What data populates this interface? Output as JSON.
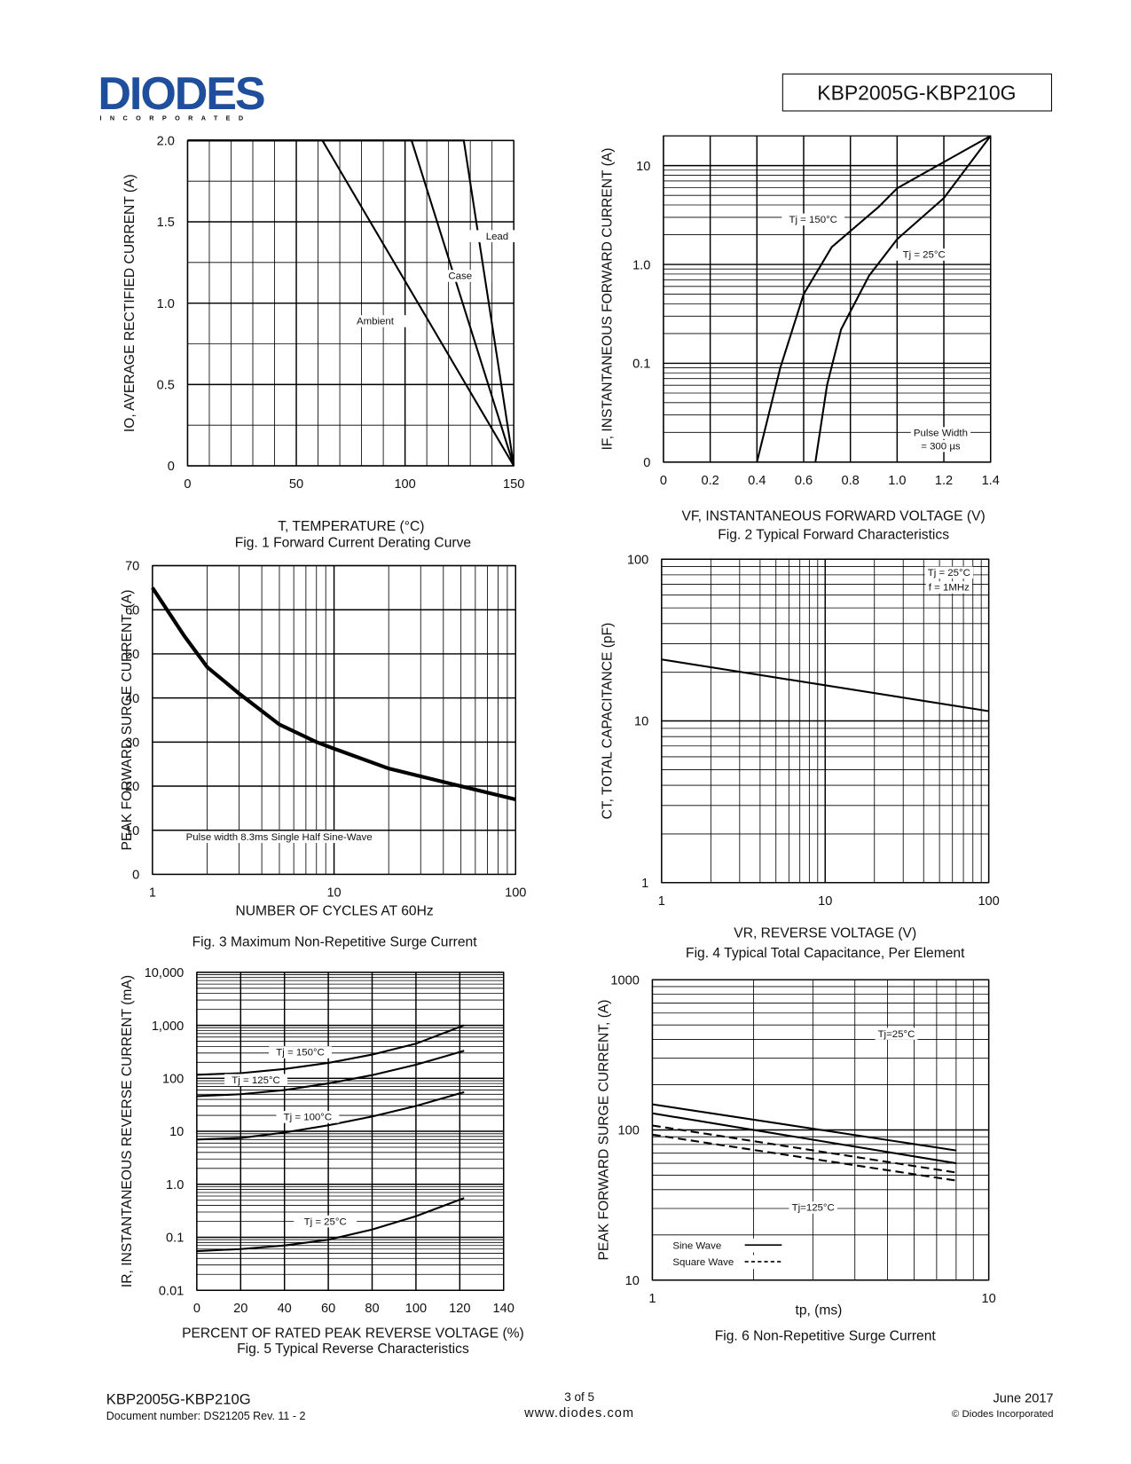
{
  "header": {
    "logo": "DIODES",
    "logo_sub": "INCORPORATED",
    "part": "KBP2005G-KBP210G"
  },
  "footer": {
    "part": "KBP2005G-KBP210G",
    "doc": "Document number: DS21205 Rev. 11 - 2",
    "page": "3 of 5",
    "web": "www.diodes.com",
    "date": "June 2017",
    "copyright": "© Diodes Incorporated"
  },
  "chart_data": [
    {
      "type": "line",
      "title": "Fig. 1  Forward Current Derating Curve",
      "xlabel": "T, TEMPERATURE (°C)",
      "ylabel": "IO, AVERAGE RECTIFIED CURRENT (A)",
      "xlim": [
        0,
        150
      ],
      "xticks": [
        0,
        50,
        100,
        150
      ],
      "xgrid_step": 10,
      "ylim": [
        0,
        2
      ],
      "yticks": [
        0,
        0.5,
        {
          "value": 1,
          "label": "1.0"
        },
        1.5,
        {
          "value": 2,
          "label": "2.0"
        }
      ],
      "ygrid_step": 0.25,
      "series": [
        {
          "name": "Ambient",
          "color": "#000",
          "x": [
            0,
            62,
            150
          ],
          "values": [
            2,
            2,
            0
          ]
        },
        {
          "name": "Case",
          "color": "#000",
          "x": [
            0,
            103,
            150
          ],
          "values": [
            2,
            2,
            0
          ]
        },
        {
          "name": "Lead",
          "color": "#000",
          "x": [
            0,
            127,
            150
          ],
          "values": [
            2,
            2,
            0
          ]
        }
      ]
    },
    {
      "type": "line",
      "title": "Fig. 2  Typical Forward Characteristics",
      "xlabel": "VF, INSTANTANEOUS FORWARD VOLTAGE (V)",
      "ylabel": "IF, INSTANTANEOUS FORWARD CURRENT (A)",
      "xlim": [
        0,
        1.4
      ],
      "xticks": [
        0,
        0.2,
        0.4,
        0.6,
        0.8,
        {
          "value": 1,
          "label": "1.0"
        },
        1.2,
        1.4
      ],
      "xgrid_step": 0.2,
      "ylim": [
        0.01,
        20
      ],
      "yscale": "log",
      "yticks": [
        {
          "value": 0.01,
          "label": "0"
        },
        0.1,
        {
          "value": 1,
          "label": "1.0"
        },
        10
      ],
      "annotations": [
        "Pulse Width",
        "= 300 µs"
      ],
      "series": [
        {
          "name": "Tj = 150°C",
          "color": "#000",
          "x": [
            0.4,
            0.5,
            0.6,
            0.72,
            0.92,
            1.0,
            1.4
          ],
          "values": [
            0.01,
            0.09,
            0.5,
            1.5,
            3.8,
            5.9,
            20
          ]
        },
        {
          "name": "Tj = 25°C",
          "color": "#000",
          "x": [
            0.65,
            0.7,
            0.76,
            0.88,
            1.0,
            1.2,
            1.4
          ],
          "values": [
            0.01,
            0.06,
            0.22,
            0.77,
            1.8,
            4.7,
            20
          ]
        }
      ]
    },
    {
      "type": "line",
      "title": "Fig. 3 Maximum Non-Repetitive Surge Current",
      "xlabel": "NUMBER OF CYCLES AT 60Hz",
      "ylabel": "PEAK FORWARD SURGE CURRENT, (A)",
      "xlim": [
        1,
        100
      ],
      "xscale": "log",
      "xticks": [
        1,
        10,
        100
      ],
      "ylim": [
        0,
        70
      ],
      "yticks": [
        0,
        10,
        20,
        30,
        40,
        50,
        60,
        70
      ],
      "annotations": [
        "Pulse width 8.3ms Single Half Sine-Wave"
      ],
      "series": [
        {
          "color": "#000",
          "x": [
            1,
            1.5,
            2,
            3,
            5,
            8,
            10,
            20,
            50,
            100
          ],
          "values": [
            65,
            54,
            47,
            41,
            34,
            30,
            28.5,
            24,
            20,
            17
          ]
        }
      ]
    },
    {
      "type": "line",
      "title": "Fig. 4  Typical Total Capacitance, Per Element",
      "xlabel": "VR, REVERSE VOLTAGE (V)",
      "ylabel": "CT, TOTAL CAPACITANCE (pF)",
      "xlim": [
        1,
        100
      ],
      "xscale": "log",
      "xticks": [
        1,
        10,
        100
      ],
      "ylim": [
        1,
        100
      ],
      "yscale": "log",
      "yticks": [
        1,
        10,
        100
      ],
      "annotations": [
        "Tj = 25°C",
        "f = 1MHz"
      ],
      "series": [
        {
          "color": "#000",
          "x": [
            1,
            100
          ],
          "values": [
            24,
            11.5
          ]
        }
      ]
    },
    {
      "type": "line",
      "title": "Fig. 5  Typical Reverse Characteristics",
      "xlabel": "PERCENT OF RATED PEAK REVERSE VOLTAGE (%)",
      "ylabel": "IR, INSTANTANEOUS REVERSE CURRENT (mA)",
      "xlim": [
        0,
        140
      ],
      "xticks": [
        0,
        20,
        40,
        60,
        80,
        100,
        120,
        140
      ],
      "ylim": [
        0.01,
        10000
      ],
      "yscale": "log",
      "yticks": [
        0.01,
        0.1,
        {
          "value": 1,
          "label": "1.0"
        },
        10,
        100,
        {
          "value": 1000,
          "label": "1,000"
        },
        {
          "value": 10000,
          "label": "10,000"
        }
      ],
      "series": [
        {
          "name": "Tj = 150°C",
          "color": "#000",
          "x": [
            0,
            20,
            40,
            60,
            80,
            100,
            122
          ],
          "values": [
            117,
            125,
            150,
            195,
            280,
            450,
            1000
          ]
        },
        {
          "name": "Tj = 125°C",
          "color": "#000",
          "x": [
            0,
            20,
            40,
            60,
            80,
            100,
            122
          ],
          "values": [
            46,
            50,
            60,
            80,
            115,
            180,
            330
          ]
        },
        {
          "name": "Tj = 100°C",
          "color": "#000",
          "x": [
            0,
            20,
            40,
            60,
            80,
            100,
            122
          ],
          "values": [
            7,
            7.5,
            9.5,
            13,
            19,
            30,
            55
          ]
        },
        {
          "name": "Tj = 25°C",
          "color": "#000",
          "x": [
            0,
            20,
            40,
            60,
            80,
            100,
            122
          ],
          "values": [
            0.055,
            0.06,
            0.07,
            0.09,
            0.14,
            0.25,
            0.55
          ]
        }
      ]
    },
    {
      "type": "line",
      "title": "Fig. 6 Non-Repetitive Surge Current",
      "xlabel": "tp, (ms)",
      "ylabel": "PEAK FORWARD SURGE CURRENT, (A)",
      "xlim": [
        1,
        10
      ],
      "xscale": "log",
      "xticks": [
        1,
        10
      ],
      "ylim": [
        10,
        1000
      ],
      "yscale": "log",
      "yticks": [
        10,
        100,
        1000
      ],
      "annotations": [
        "Tj=25°C",
        "Tj=125°C"
      ],
      "legend": [
        {
          "label": "Sine Wave",
          "dash": false
        },
        {
          "label": "Square Wave",
          "dash": true
        }
      ],
      "series": [
        {
          "color": "#000",
          "dash": false,
          "x": [
            1,
            8
          ],
          "values": [
            148,
            73
          ]
        },
        {
          "color": "#000",
          "dash": false,
          "x": [
            1,
            8
          ],
          "values": [
            129,
            60
          ]
        },
        {
          "color": "#000",
          "dash": true,
          "x": [
            1,
            8
          ],
          "values": [
            107,
            52
          ]
        },
        {
          "color": "#000",
          "dash": true,
          "x": [
            1,
            8
          ],
          "values": [
            93,
            46
          ]
        }
      ]
    }
  ]
}
